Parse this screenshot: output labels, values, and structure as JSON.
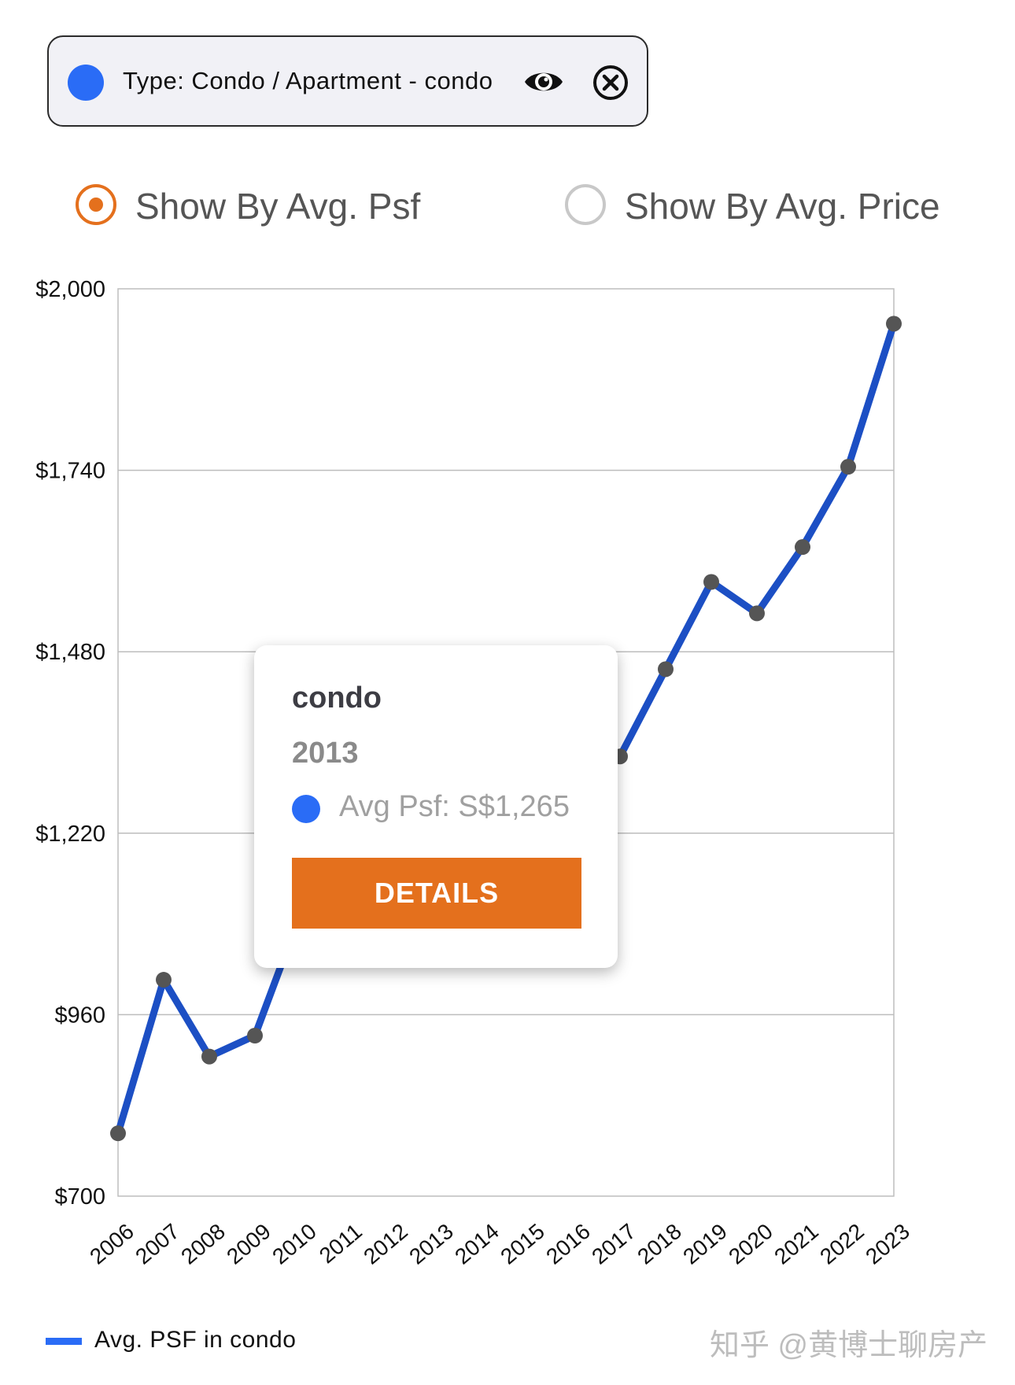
{
  "filter_chip": {
    "label": "Type: Condo / Apartment - condo",
    "dot_color": "#2a6cf6",
    "eye_icon": "eye-icon",
    "close_icon": "close-circle-icon"
  },
  "toggle": {
    "options": [
      {
        "label": "Show By Avg. Psf",
        "selected": true
      },
      {
        "label": "Show By Avg. Price",
        "selected": false
      }
    ],
    "selected_color": "#e4701d"
  },
  "tooltip": {
    "series": "condo",
    "year": "2013",
    "value_label": "Avg Psf:",
    "value": "S$1,265",
    "button_label": "DETAILS",
    "button_color": "#e4701d",
    "dot_color": "#2a6cf6"
  },
  "legend": {
    "label": "Avg. PSF in condo",
    "color": "#2a6cf6"
  },
  "watermark": "知乎 @黄博士聊房产",
  "chart_data": {
    "type": "line",
    "categories": [
      "2006",
      "2007",
      "2008",
      "2009",
      "2010",
      "2011",
      "2012",
      "2013",
      "2014",
      "2015",
      "2016",
      "2017",
      "2018",
      "2019",
      "2020",
      "2021",
      "2022",
      "2023"
    ],
    "series": [
      {
        "name": "Avg. PSF in condo",
        "values": [
          790,
          1010,
          900,
          930,
          1105,
          1200,
          1250,
          1265,
          1290,
          1300,
          1310,
          1330,
          1455,
          1580,
          1535,
          1630,
          1745,
          1950
        ]
      }
    ],
    "y_ticks": [
      "$700",
      "$960",
      "$1,220",
      "$1,480",
      "$1,740",
      "$2,000"
    ],
    "ylim": [
      700,
      2000
    ],
    "grid": true,
    "line_color": "#1c4fc4",
    "marker_color": "#555555",
    "legend_position": "bottom-left"
  }
}
